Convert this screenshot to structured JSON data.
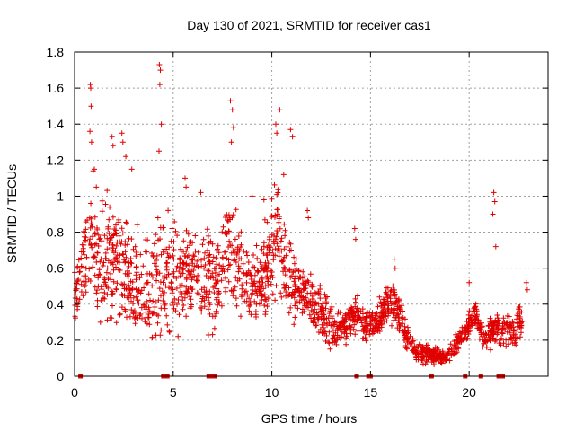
{
  "chart_data": {
    "type": "scatter",
    "title": "Day 130 of 2021, SRMTID for receiver cas1",
    "xlabel": "GPS time / hours",
    "ylabel": "SRMTID / TECUs",
    "xlim": [
      0,
      24
    ],
    "ylim": [
      0,
      1.8
    ],
    "xticks": [
      0,
      5,
      10,
      15,
      20
    ],
    "xtick_labels": [
      "0",
      "5",
      "10",
      "15",
      "20"
    ],
    "yticks": [
      0,
      0.2,
      0.4,
      0.6,
      0.8,
      1.0,
      1.2,
      1.4,
      1.6,
      1.8
    ],
    "ytick_labels": [
      "0",
      "0.2",
      "0.4",
      "0.6",
      "0.8",
      "1",
      "1.2",
      "1.4",
      "1.6",
      "1.8"
    ],
    "grid": true,
    "marker": "+",
    "color": "#e00000",
    "envelope_hours": [
      [
        0.0,
        0.15,
        0.7
      ],
      [
        0.5,
        0.3,
        0.95
      ],
      [
        0.9,
        0.4,
        1.3
      ],
      [
        1.3,
        0.15,
        1.0
      ],
      [
        1.8,
        0.1,
        1.25
      ],
      [
        2.3,
        0.2,
        1.05
      ],
      [
        2.8,
        0.15,
        0.9
      ],
      [
        3.3,
        0.1,
        0.95
      ],
      [
        3.8,
        0.1,
        0.8
      ],
      [
        4.3,
        0.0,
        1.1
      ],
      [
        4.8,
        0.05,
        1.0
      ],
      [
        5.3,
        0.2,
        0.9
      ],
      [
        5.8,
        0.2,
        1.05
      ],
      [
        6.3,
        0.2,
        0.9
      ],
      [
        6.8,
        0.15,
        0.95
      ],
      [
        7.3,
        0.2,
        0.85
      ],
      [
        7.8,
        0.25,
        1.1
      ],
      [
        8.3,
        0.3,
        0.95
      ],
      [
        8.8,
        0.25,
        0.8
      ],
      [
        9.3,
        0.2,
        0.8
      ],
      [
        9.8,
        0.25,
        1.0
      ],
      [
        10.3,
        0.3,
        1.2
      ],
      [
        10.8,
        0.2,
        0.9
      ],
      [
        11.3,
        0.25,
        0.7
      ],
      [
        11.8,
        0.25,
        0.65
      ],
      [
        12.3,
        0.2,
        0.6
      ],
      [
        12.8,
        0.1,
        0.5
      ],
      [
        13.3,
        0.1,
        0.4
      ],
      [
        13.8,
        0.15,
        0.45
      ],
      [
        14.3,
        0.2,
        0.5
      ],
      [
        14.8,
        0.15,
        0.4
      ],
      [
        15.3,
        0.2,
        0.4
      ],
      [
        15.8,
        0.25,
        0.55
      ],
      [
        16.3,
        0.25,
        0.55
      ],
      [
        16.8,
        0.1,
        0.35
      ],
      [
        17.3,
        0.05,
        0.2
      ],
      [
        17.8,
        0.05,
        0.2
      ],
      [
        18.3,
        0.05,
        0.18
      ],
      [
        18.8,
        0.05,
        0.15
      ],
      [
        19.3,
        0.1,
        0.25
      ],
      [
        19.8,
        0.15,
        0.35
      ],
      [
        20.3,
        0.25,
        0.45
      ],
      [
        20.8,
        0.1,
        0.3
      ],
      [
        21.3,
        0.15,
        0.4
      ],
      [
        21.8,
        0.15,
        0.35
      ],
      [
        22.3,
        0.1,
        0.4
      ],
      [
        22.7,
        0.2,
        0.45
      ]
    ],
    "outlier_points": [
      [
        0.8,
        1.62
      ],
      [
        0.82,
        1.6
      ],
      [
        0.84,
        1.5
      ],
      [
        0.78,
        1.36
      ],
      [
        0.86,
        1.3
      ],
      [
        2.4,
        1.35
      ],
      [
        2.45,
        1.3
      ],
      [
        1.9,
        1.33
      ],
      [
        1.95,
        1.28
      ],
      [
        4.3,
        1.73
      ],
      [
        4.35,
        1.7
      ],
      [
        4.32,
        1.62
      ],
      [
        4.4,
        1.4
      ],
      [
        4.28,
        1.25
      ],
      [
        7.9,
        1.53
      ],
      [
        8.0,
        1.48
      ],
      [
        8.05,
        1.38
      ],
      [
        7.95,
        1.3
      ],
      [
        10.4,
        1.48
      ],
      [
        10.2,
        1.4
      ],
      [
        10.25,
        1.35
      ],
      [
        10.95,
        1.37
      ],
      [
        11.05,
        1.33
      ],
      [
        11.8,
        0.92
      ],
      [
        11.85,
        0.88
      ],
      [
        14.2,
        0.82
      ],
      [
        14.25,
        0.76
      ],
      [
        16.2,
        0.65
      ],
      [
        16.25,
        0.6
      ],
      [
        21.25,
        1.02
      ],
      [
        21.3,
        0.97
      ],
      [
        21.2,
        0.9
      ],
      [
        21.35,
        0.72
      ],
      [
        20.0,
        0.52
      ],
      [
        22.9,
        0.52
      ],
      [
        22.95,
        0.48
      ],
      [
        2.6,
        1.22
      ],
      [
        5.6,
        1.1
      ],
      [
        5.65,
        1.05
      ],
      [
        1.0,
        1.15
      ],
      [
        1.1,
        1.05
      ],
      [
        2.9,
        1.15
      ],
      [
        6.4,
        1.02
      ],
      [
        9.0,
        1.0
      ],
      [
        9.6,
        0.98
      ],
      [
        10.6,
        1.12
      ]
    ],
    "zero_points": [
      0.3,
      4.5,
      4.6,
      4.7,
      6.8,
      7.0,
      7.1,
      14.3,
      14.9,
      15.0,
      18.1,
      19.8,
      20.6,
      21.5,
      21.7
    ]
  }
}
